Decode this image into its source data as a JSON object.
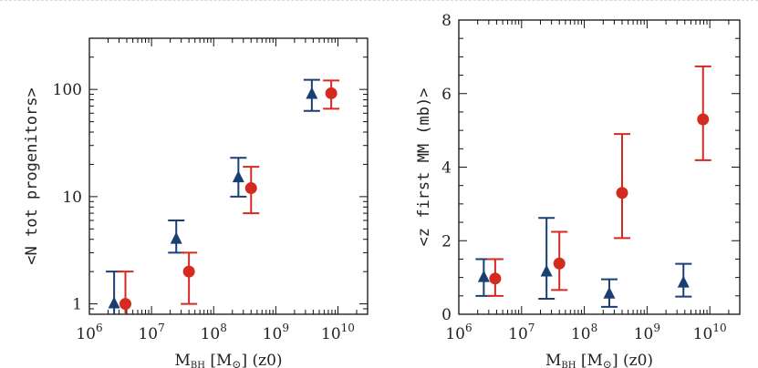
{
  "chart_data": [
    {
      "type": "scatter",
      "title": "",
      "xlabel": "M_BH [M_⊙] (z0)",
      "xlabel_main": "M",
      "xlabel_sub": "BH",
      "xlabel_rest": "[M",
      "xlabel_sun": "⊙",
      "xlabel_tail": "] (z0)",
      "ylabel": "<N tot progenitors>",
      "xscale": "log",
      "yscale": "log",
      "xlim": [
        1000000,
        30000000000
      ],
      "ylim": [
        0.8,
        300
      ],
      "xticks": [
        {
          "value": 1000000,
          "base": "10",
          "exp": "6"
        },
        {
          "value": 10000000,
          "base": "10",
          "exp": "7"
        },
        {
          "value": 100000000,
          "base": "10",
          "exp": "8"
        },
        {
          "value": 1000000000,
          "base": "10",
          "exp": "9"
        },
        {
          "value": 10000000000,
          "base": "10",
          "exp": "10"
        }
      ],
      "yticks": [
        {
          "value": 1,
          "label": "1"
        },
        {
          "value": 10,
          "label": "10"
        },
        {
          "value": 100,
          "label": "100"
        }
      ],
      "series": [
        {
          "name": "blue-triangles",
          "marker": "triangle",
          "color": "#1b3f73",
          "x": [
            2500000,
            25000000,
            250000000,
            3800000000
          ],
          "y": [
            1.0,
            4.0,
            15,
            90
          ],
          "ylow": [
            0.0,
            3.0,
            10,
            63
          ],
          "yhigh": [
            2.0,
            6.0,
            23,
            123
          ]
        },
        {
          "name": "red-circles",
          "marker": "circle",
          "color": "#d42a20",
          "x": [
            3800000,
            40000000,
            400000000,
            7800000000
          ],
          "y": [
            1.0,
            2.0,
            12,
            92
          ],
          "ylow": [
            0.0,
            1.0,
            7,
            66
          ],
          "yhigh": [
            2.0,
            3.0,
            19,
            121
          ]
        }
      ]
    },
    {
      "type": "scatter",
      "title": "",
      "xlabel": "M_BH [M_⊙] (z0)",
      "xlabel_main": "M",
      "xlabel_sub": "BH",
      "xlabel_rest": "[M",
      "xlabel_sun": "⊙",
      "xlabel_tail": "] (z0)",
      "ylabel": "<z first MM (mb)>",
      "xscale": "log",
      "yscale": "linear",
      "xlim": [
        1000000,
        30000000000
      ],
      "ylim": [
        0,
        8
      ],
      "xticks": [
        {
          "value": 1000000,
          "base": "10",
          "exp": "6"
        },
        {
          "value": 10000000,
          "base": "10",
          "exp": "7"
        },
        {
          "value": 100000000,
          "base": "10",
          "exp": "8"
        },
        {
          "value": 1000000000,
          "base": "10",
          "exp": "9"
        },
        {
          "value": 10000000000,
          "base": "10",
          "exp": "10"
        }
      ],
      "yticks": [
        {
          "value": 0,
          "label": "0"
        },
        {
          "value": 2,
          "label": "2"
        },
        {
          "value": 4,
          "label": "4"
        },
        {
          "value": 6,
          "label": "6"
        },
        {
          "value": 8,
          "label": "8"
        }
      ],
      "series": [
        {
          "name": "blue-triangles",
          "marker": "triangle",
          "color": "#1b3f73",
          "x": [
            2500000,
            25000000,
            250000000,
            3800000000
          ],
          "y": [
            1.0,
            1.15,
            0.55,
            0.85
          ],
          "ylow": [
            0.5,
            0.42,
            0.2,
            0.48
          ],
          "yhigh": [
            1.5,
            2.62,
            0.95,
            1.37
          ]
        },
        {
          "name": "red-circles",
          "marker": "circle",
          "color": "#d42a20",
          "x": [
            3800000,
            40000000,
            400000000,
            7800000000
          ],
          "y": [
            0.97,
            1.38,
            3.3,
            5.3
          ],
          "ylow": [
            0.5,
            0.66,
            2.07,
            4.19
          ],
          "yhigh": [
            1.5,
            2.24,
            4.9,
            6.74
          ]
        }
      ]
    }
  ]
}
